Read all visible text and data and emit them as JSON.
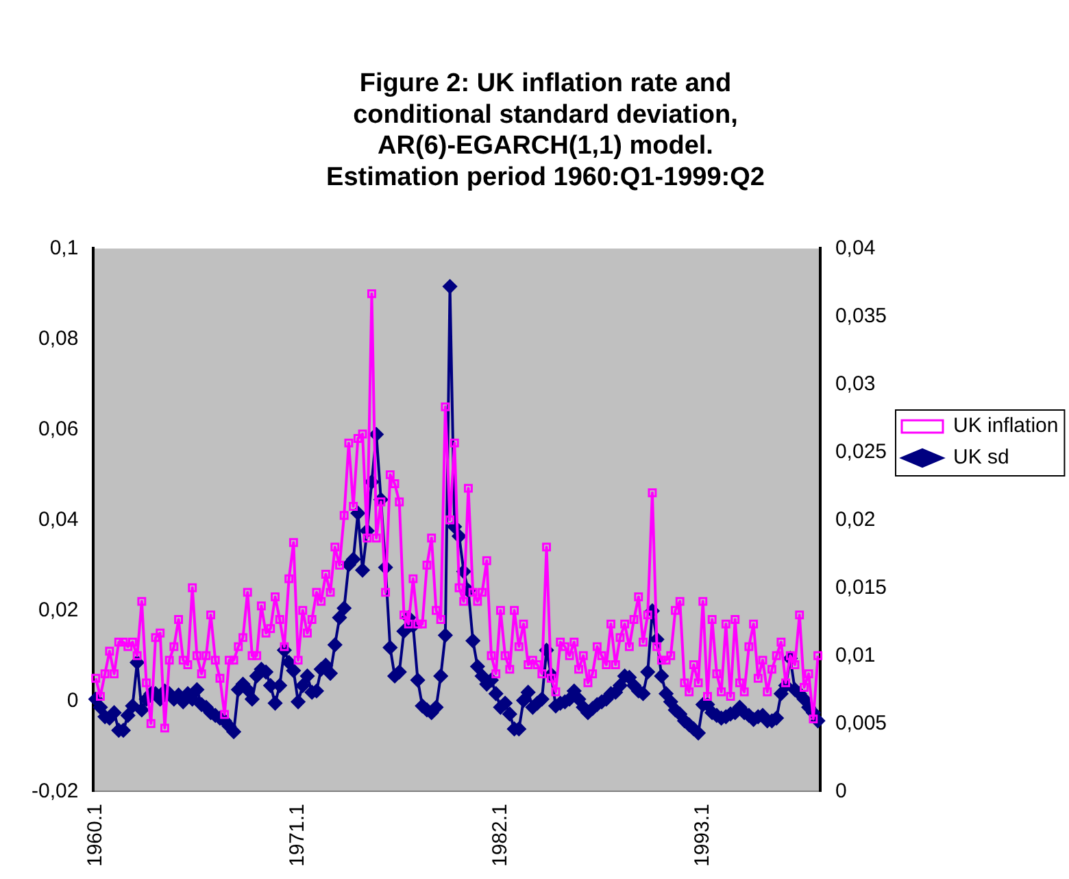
{
  "chart_data": {
    "type": "line",
    "title": "Figure 2: UK inflation rate and\nconditional standard deviation,\nAR(6)-EGARCH(1,1) model.\nEstimation period 1960:Q1-1999:Q2",
    "categories": [
      "1960.1",
      null,
      null,
      null,
      null,
      null,
      null,
      null,
      null,
      null,
      null,
      null,
      null,
      null,
      null,
      null,
      null,
      null,
      null,
      null,
      null,
      null,
      null,
      null,
      null,
      null,
      null,
      null,
      null,
      null,
      null,
      null,
      null,
      null,
      null,
      null,
      null,
      null,
      null,
      null,
      null,
      null,
      null,
      null,
      "1971.1",
      null,
      null,
      null,
      null,
      null,
      null,
      null,
      null,
      null,
      null,
      null,
      null,
      null,
      null,
      null,
      null,
      null,
      null,
      null,
      null,
      null,
      null,
      null,
      null,
      null,
      null,
      null,
      null,
      null,
      null,
      null,
      null,
      null,
      null,
      null,
      null,
      null,
      null,
      null,
      null,
      null,
      null,
      null,
      "1982.1",
      null,
      null,
      null,
      null,
      null,
      null,
      null,
      null,
      null,
      null,
      null,
      null,
      null,
      null,
      null,
      null,
      null,
      null,
      null,
      null,
      null,
      null,
      null,
      null,
      null,
      null,
      null,
      null,
      null,
      null,
      null,
      null,
      null,
      null,
      null,
      null,
      null,
      null,
      null,
      null,
      null,
      null,
      null,
      "1993.1",
      null,
      null,
      null,
      null,
      null,
      null,
      null,
      null,
      null,
      null,
      null,
      null,
      null,
      null,
      null,
      null,
      null,
      null,
      null,
      null,
      null,
      null,
      null,
      null,
      null
    ],
    "series": [
      {
        "name": "UK inflation",
        "color": "#ff00ff",
        "marker": "square",
        "values": [
          0.005,
          0.001,
          0.006,
          0.011,
          0.006,
          0.013,
          0.013,
          0.012,
          0.013,
          0.01,
          0.022,
          0.004,
          -0.005,
          0.014,
          0.015,
          -0.006,
          0.009,
          0.012,
          0.018,
          0.009,
          0.008,
          0.025,
          0.01,
          0.006,
          0.01,
          0.019,
          0.009,
          0.005,
          -0.003,
          0.009,
          0.009,
          0.012,
          0.014,
          0.024,
          0.01,
          0.01,
          0.021,
          0.015,
          0.016,
          0.023,
          0.018,
          0.012,
          0.027,
          0.035,
          0.009,
          0.02,
          0.015,
          0.018,
          0.024,
          0.022,
          0.028,
          0.024,
          0.034,
          0.03,
          0.041,
          0.057,
          0.043,
          0.058,
          0.059,
          0.036,
          0.09,
          0.036,
          0.044,
          0.024,
          0.05,
          0.048,
          0.044,
          0.019,
          0.017,
          0.027,
          0.017,
          0.017,
          0.03,
          0.036,
          0.02,
          0.018,
          0.065,
          0.04,
          0.057,
          0.025,
          0.022,
          0.047,
          0.024,
          0.022,
          0.024,
          0.031,
          0.01,
          0.006,
          0.02,
          0.01,
          0.007,
          0.02,
          0.012,
          0.017,
          0.008,
          0.009,
          0.008,
          0.006,
          0.034,
          0.005,
          0.002,
          0.013,
          0.012,
          0.01,
          0.013,
          0.007,
          0.01,
          0.004,
          0.006,
          0.012,
          0.01,
          0.008,
          0.017,
          0.008,
          0.014,
          0.017,
          0.012,
          0.018,
          0.023,
          0.013,
          0.019,
          0.046,
          0.012,
          0.009,
          0.009,
          0.01,
          0.02,
          0.022,
          0.004,
          0.002,
          0.008,
          0.004,
          0.022,
          0.001,
          0.018,
          0.006,
          0.002,
          0.017,
          0.001,
          0.018,
          0.004,
          0.002,
          0.012,
          0.017,
          0.005,
          0.009,
          0.002,
          0.007,
          0.01,
          0.013,
          0.004,
          0.01,
          0.008,
          0.019,
          0.003,
          0.006,
          -0.004,
          0.01
        ]
      },
      {
        "name": "UK sd",
        "color": "#000080",
        "marker": "diamond",
        "axis": "y2",
        "values": [
          0.0068,
          0.0062,
          0.0055,
          0.0054,
          0.0058,
          0.0045,
          0.0045,
          0.0056,
          0.0063,
          0.0095,
          0.006,
          0.0068,
          0.0072,
          0.0072,
          0.0068,
          0.0074,
          0.0072,
          0.0068,
          0.0071,
          0.0066,
          0.0072,
          0.0068,
          0.0075,
          0.0064,
          0.0062,
          0.0058,
          0.0056,
          0.0054,
          0.0052,
          0.0048,
          0.0044,
          0.0075,
          0.0079,
          0.0075,
          0.0068,
          0.0085,
          0.009,
          0.0088,
          0.0078,
          0.0065,
          0.0078,
          0.0104,
          0.0095,
          0.0089,
          0.0066,
          0.0078,
          0.0085,
          0.0073,
          0.0074,
          0.009,
          0.0093,
          0.0087,
          0.0108,
          0.0128,
          0.0135,
          0.0167,
          0.0171,
          0.0205,
          0.0163,
          0.0192,
          0.0228,
          0.0263,
          0.0215,
          0.0165,
          0.0106,
          0.0085,
          0.0088,
          0.0118,
          0.0128,
          0.0122,
          0.0082,
          0.0063,
          0.006,
          0.0058,
          0.0062,
          0.0085,
          0.0115,
          0.0372,
          0.0195,
          0.0188,
          0.0162,
          0.0148,
          0.0111,
          0.0092,
          0.0085,
          0.0079,
          0.0082,
          0.0072,
          0.0062,
          0.0065,
          0.0057,
          0.0046,
          0.0046,
          0.0067,
          0.0073,
          0.0062,
          0.0065,
          0.0068,
          0.0104,
          0.0086,
          0.0063,
          0.0065,
          0.0066,
          0.0068,
          0.0074,
          0.0068,
          0.0062,
          0.0058,
          0.0061,
          0.0064,
          0.0066,
          0.0068,
          0.0072,
          0.0073,
          0.0078,
          0.0085,
          0.0084,
          0.0078,
          0.0074,
          0.0072,
          0.0088,
          0.0133,
          0.0112,
          0.0085,
          0.0072,
          0.0066,
          0.006,
          0.0057,
          0.0052,
          0.0049,
          0.0046,
          0.0043,
          0.0064,
          0.0064,
          0.0058,
          0.0056,
          0.0054,
          0.0055,
          0.0057,
          0.0058,
          0.0062,
          0.0058,
          0.0056,
          0.0053,
          0.0055,
          0.0056,
          0.0052,
          0.0052,
          0.0054,
          0.0072,
          0.0078,
          0.0098,
          0.0075,
          0.0072,
          0.0068,
          0.0062,
          0.0058,
          0.0052
        ]
      }
    ],
    "ylim": [
      -0.02,
      0.1
    ],
    "yticks": [
      {
        "value": -0.02,
        "label": "-0,02"
      },
      0,
      {
        "value": 0.02,
        "label": "0,02"
      },
      {
        "value": 0.04,
        "label": "0,04"
      },
      {
        "value": 0.06,
        "label": "0,06"
      },
      {
        "value": 0.08,
        "label": "0,08"
      },
      {
        "value": 0.1,
        "label": "0,1"
      }
    ],
    "y2lim": [
      0,
      0.04
    ],
    "y2ticks": [
      0,
      {
        "value": 0.005,
        "label": "0,005"
      },
      {
        "value": 0.01,
        "label": "0,01"
      },
      {
        "value": 0.015,
        "label": "0,015"
      },
      {
        "value": 0.02,
        "label": "0,02"
      },
      {
        "value": 0.025,
        "label": "0,025"
      },
      {
        "value": 0.03,
        "label": "0,03"
      },
      {
        "value": 0.035,
        "label": "0,035"
      },
      {
        "value": 0.04,
        "label": "0,04"
      }
    ],
    "grid": false,
    "legend": "right",
    "line_style": "solid"
  }
}
